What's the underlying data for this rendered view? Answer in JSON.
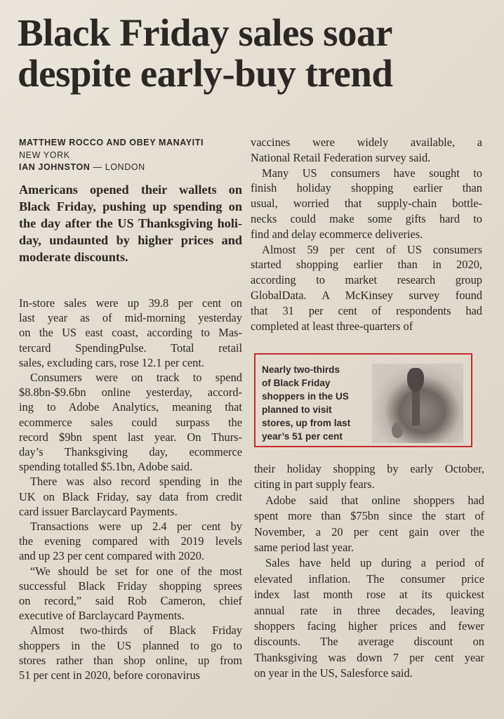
{
  "headline": {
    "lines": [
      "Black Friday sales soar",
      "despite early-buy trend"
    ]
  },
  "byline": {
    "authors": "MATTHEW ROCCO AND OBEY MANAYITI",
    "location1": "NEW YORK",
    "author2": "IAN JOHNSTON",
    "separator": " — ",
    "location2": "LONDON"
  },
  "colors": {
    "text": "#2a2622",
    "paper": "#e6e0d3",
    "box_border": "#c8292b"
  },
  "lead": {
    "paragraphs": [
      [
        "Americans opened their wallets on",
        "Black Friday, pushing up spending on",
        "the day after the US Thanksgiving holi-",
        "day, undaunted by higher prices and",
        "moderate discounts."
      ]
    ]
  },
  "column1": {
    "paragraphs": [
      [
        "In-store sales were up 39.8 per cent on",
        "last year as of mid-morning yesterday",
        "on the US east coast, according to Mas-",
        "tercard SpendingPulse. Total retail",
        "sales, excluding cars, rose 12.1 per cent."
      ],
      [
        "Consumers were on track to spend",
        "$8.8bn-$9.6bn online yesterday, accord-",
        "ing to Adobe Analytics, meaning that",
        "ecommerce sales could surpass the",
        "record $9bn spent last year. On Thurs-",
        "day’s Thanksgiving day, ecommerce",
        "spending totalled $5.1bn, Adobe said."
      ],
      [
        "There was also record spending in the",
        "UK on Black Friday, say data from credit",
        "card issuer Barclaycard Payments."
      ],
      [
        "Transactions were up 2.4 per cent by",
        "the evening compared with 2019 levels",
        "and up 23 per cent compared with 2020."
      ],
      [
        "“We should be set for one of the most",
        "successful Black Friday shopping sprees",
        "on record,” said Rob Cameron, chief",
        "executive of Barclaycard Payments."
      ],
      [
        "Almost two-thirds of Black Friday",
        "shoppers in the US planned to go to",
        "stores rather than shop online, up from",
        "51 per cent in 2020, before coronavirus"
      ]
    ]
  },
  "column2_top": {
    "paragraphs": [
      [
        "vaccines were widely available, a",
        "National Retail Federation survey said."
      ],
      [
        "Many US consumers have sought to",
        "finish holiday shopping earlier than",
        "usual, worried that supply-chain bottle-",
        "necks could make some gifts hard to",
        "find and delay ecommerce deliveries."
      ],
      [
        "Almost 59 per cent of US consumers",
        "started shopping earlier than in 2020,",
        "according to market research group",
        "GlobalData. A McKinsey survey found",
        "that 31 per cent of respondents had",
        "completed at least three-quarters of"
      ]
    ]
  },
  "pullquote": {
    "lines": [
      "Nearly two-thirds",
      "of Black Friday",
      "shoppers in the US",
      "planned to visit",
      "stores, up from last",
      "year’s 51 per cent"
    ]
  },
  "column2_bottom": {
    "paragraphs": [
      [
        "their holiday shopping by early October,",
        "citing in part supply fears."
      ],
      [
        "Adobe said that online shoppers had",
        "spent more than $75bn since the start of",
        "November, a 20 per cent gain over the",
        "same period last year."
      ],
      [
        "Sales have held up during a period of",
        "elevated inflation. The consumer price",
        "index last month rose at its quickest",
        "annual rate in three decades, leaving",
        "shoppers facing higher prices and fewer",
        "discounts. The average discount on",
        "Thanksgiving was down 7 per cent year",
        "on year in the US, Salesforce said."
      ]
    ]
  }
}
